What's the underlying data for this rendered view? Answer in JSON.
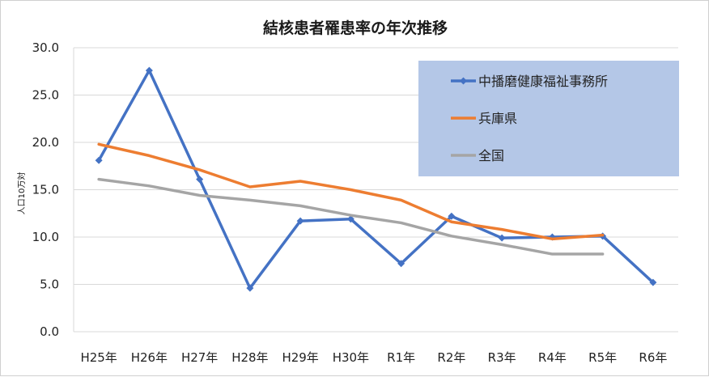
{
  "chart_data": {
    "type": "line",
    "title": "結核患者罹患率の年次推移",
    "ylabel": "人口10万対",
    "xlabel": "",
    "categories": [
      "H25年",
      "H26年",
      "H27年",
      "H28年",
      "H29年",
      "H30年",
      "R1年",
      "R2年",
      "R3年",
      "R4年",
      "R5年",
      "R6年"
    ],
    "ylim": [
      0,
      30
    ],
    "yticks": [
      "0.0",
      "5.0",
      "10.0",
      "15.0",
      "20.0",
      "25.0",
      "30.0"
    ],
    "grid": true,
    "legend_position": "top-right",
    "series": [
      {
        "name": "中播磨健康福祉事務所",
        "color": "#4472c4",
        "marker": "diamond",
        "values": [
          18.1,
          27.6,
          16.1,
          4.6,
          11.7,
          11.9,
          7.2,
          12.2,
          9.9,
          10.0,
          10.1,
          5.2
        ]
      },
      {
        "name": "兵庫県",
        "color": "#ed7d31",
        "marker": "none",
        "values": [
          19.8,
          18.6,
          17.1,
          15.3,
          15.9,
          15.0,
          13.9,
          11.6,
          10.8,
          9.8,
          10.2,
          null
        ]
      },
      {
        "name": "全国",
        "color": "#a5a5a5",
        "marker": "none",
        "values": [
          16.1,
          15.4,
          14.4,
          13.9,
          13.3,
          12.3,
          11.5,
          10.1,
          9.2,
          8.2,
          8.2,
          null
        ]
      }
    ],
    "legend_background": "#b4c7e7"
  }
}
